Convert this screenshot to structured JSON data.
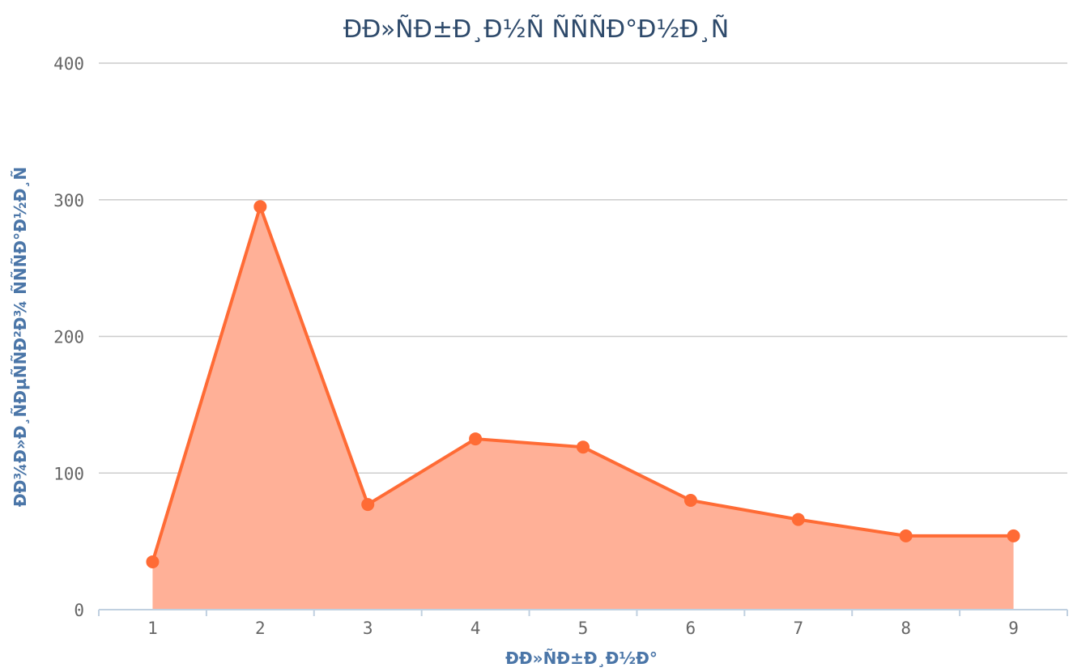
{
  "chart_data": {
    "type": "area",
    "title": "ÐÐ»ÑÐ±Ð¸Ð½Ñ ÑÑÑÐ°Ð½Ð¸Ñ",
    "xlabel": "ÐÐ»ÑÐ±Ð¸Ð½Ð°",
    "ylabel": "ÐÐ¾Ð»Ð¸ÑÐµÑÑÐ²Ð¾ ÑÑÑÐ°Ð½Ð¸Ñ",
    "x": [
      1,
      2,
      3,
      4,
      5,
      6,
      7,
      8,
      9
    ],
    "x_tick_labels": [
      "1",
      "2",
      "3",
      "4",
      "5",
      "6",
      "7",
      "8",
      "9"
    ],
    "y_ticks": [
      0,
      100,
      200,
      300,
      400
    ],
    "y_tick_labels": [
      "0",
      "100",
      "200",
      "300",
      "400"
    ],
    "ylim": [
      0,
      400
    ],
    "grid": true,
    "series": [
      {
        "values": [
          35,
          295,
          77,
          125,
          119,
          80,
          66,
          54,
          54
        ],
        "color": "#ff6b35",
        "fill_color": "#ffb097"
      }
    ]
  }
}
